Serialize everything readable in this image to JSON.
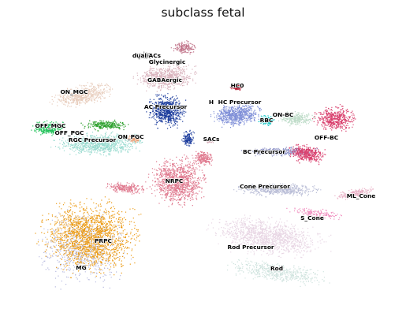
{
  "chart_data": {
    "type": "scatter",
    "title": "subclass fetal",
    "xlabel": "",
    "ylabel": "",
    "axes_visible": false,
    "grid": false,
    "legend": "on data",
    "series": [
      {
        "name": "dual ACs",
        "color": "#7f7f7f"
      },
      {
        "name": "Glycinergic",
        "color": "#c07288"
      },
      {
        "name": "GABAergic",
        "color": "#d9b3bd"
      },
      {
        "name": "AC Precursor",
        "color": "#1f3f9e"
      },
      {
        "name": "HC0",
        "color": "#b3122b"
      },
      {
        "name": "H",
        "color": "#8090d8"
      },
      {
        "name": "HC Precursor",
        "color": "#8090d8"
      },
      {
        "name": "ON_MGC",
        "color": "#e8cdbd"
      },
      {
        "name": "OFF_MGC",
        "color": "#22c25a"
      },
      {
        "name": "OFF_PGC",
        "color": "#2ca02c"
      },
      {
        "name": "RGC Precursor",
        "color": "#9adbd0"
      },
      {
        "name": "ON_PGC",
        "color": "#e6a27a"
      },
      {
        "name": "RBC",
        "color": "#1ec8c8"
      },
      {
        "name": "ON-BC",
        "color": "#bfdcc9"
      },
      {
        "name": "OFF-BC",
        "color": "#d9406e"
      },
      {
        "name": "BC Precursor",
        "color": "#8c91c6"
      },
      {
        "name": "SACs",
        "color": "#d9b3bd"
      },
      {
        "name": "NRPC",
        "color": "#e07b90"
      },
      {
        "name": "Cone Precursor",
        "color": "#b8bcd6"
      },
      {
        "name": "ML_Cone",
        "color": "#eab3c8"
      },
      {
        "name": "S_Cone",
        "color": "#f090c0"
      },
      {
        "name": "Rod Precursor",
        "color": "#e8d6e4"
      },
      {
        "name": "Rod",
        "color": "#cfe3de"
      },
      {
        "name": "PRPC",
        "color": "#ec9b14"
      },
      {
        "name": "MG",
        "color": "#b7badf"
      }
    ]
  }
}
